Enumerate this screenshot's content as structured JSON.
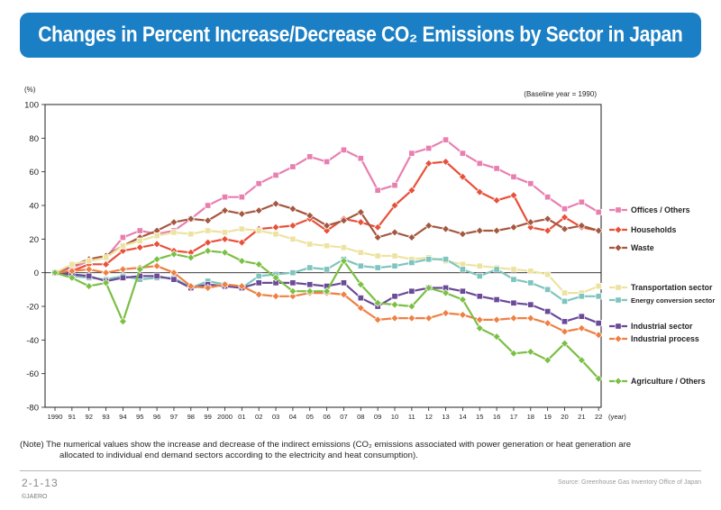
{
  "header": {
    "title": "Changes in Percent Increase/Decrease CO₂ Emissions by Sector in Japan"
  },
  "unit_label": "(%)",
  "baseline_label": "(Baseline year = 1990)",
  "x_unit": "(year)",
  "note": {
    "line1": "(Note) The numerical values show the increase and decrease of the indirect emissions (CO₂ emissions associated with power generation or heat generation are",
    "line2": "allocated to individual end demand sectors according to the electricity and heat consumption)."
  },
  "footer": {
    "code": "2-1-13",
    "source": "Source: Greenhouse Gas Inventory Office of Japan",
    "copyright": "©JAERO"
  },
  "chart_data": {
    "type": "line",
    "title": "Changes in Percent Increase/Decrease CO₂ Emissions by Sector in Japan",
    "ylabel": "(%)",
    "xlabel": "(year)",
    "ylim": [
      -80,
      100
    ],
    "yticks": [
      100,
      80,
      60,
      40,
      20,
      0,
      -20,
      -40,
      -60,
      -80
    ],
    "grid": false,
    "legend_position": "right",
    "categories": [
      "1990",
      "91",
      "92",
      "93",
      "94",
      "95",
      "96",
      "97",
      "98",
      "99",
      "2000",
      "01",
      "02",
      "03",
      "04",
      "05",
      "06",
      "07",
      "08",
      "09",
      "10",
      "11",
      "12",
      "13",
      "14",
      "15",
      "16",
      "17",
      "18",
      "19",
      "20",
      "21",
      "22"
    ],
    "series": [
      {
        "name": "Offices / Others",
        "color": "#e87fb0",
        "marker": "square",
        "values": [
          0,
          3,
          7,
          9,
          21,
          25,
          23,
          25,
          32,
          40,
          45,
          45,
          53,
          58,
          63,
          69,
          66,
          73,
          68,
          49,
          52,
          71,
          74,
          79,
          71,
          65,
          62,
          57,
          53,
          45,
          38,
          42,
          36
        ]
      },
      {
        "name": "Households",
        "color": "#e8503a",
        "marker": "diamond",
        "values": [
          0,
          1,
          5,
          5,
          13,
          15,
          17,
          13,
          12,
          18,
          20,
          18,
          26,
          27,
          28,
          32,
          25,
          32,
          30,
          27,
          40,
          49,
          65,
          66,
          57,
          48,
          43,
          46,
          27,
          25,
          33,
          27,
          25
        ]
      },
      {
        "name": "Waste",
        "color": "#a5573f",
        "marker": "diamond",
        "values": [
          0,
          4,
          8,
          10,
          16,
          21,
          25,
          30,
          32,
          31,
          37,
          35,
          37,
          41,
          38,
          34,
          28,
          31,
          36,
          21,
          24,
          21,
          28,
          26,
          23,
          25,
          25,
          27,
          30,
          32,
          26,
          28,
          25
        ]
      },
      {
        "name": "Transportation sector",
        "color": "#ede3a1",
        "marker": "square",
        "values": [
          0,
          5,
          7,
          9,
          16,
          19,
          22,
          24,
          23,
          25,
          24,
          26,
          25,
          23,
          20,
          17,
          16,
          15,
          12,
          10,
          10,
          8,
          9,
          7,
          5,
          4,
          3,
          2,
          1,
          -1,
          -12,
          -12,
          -8
        ]
      },
      {
        "name": "Energy conversion sector",
        "color": "#7fc5bd",
        "marker": "square",
        "values": [
          0,
          -2,
          -3,
          -4,
          -2,
          -4,
          -3,
          -3,
          -9,
          -5,
          -7,
          -9,
          -2,
          -1,
          0,
          3,
          2,
          8,
          4,
          3,
          4,
          6,
          8,
          8,
          2,
          -2,
          2,
          -4,
          -6,
          -10,
          -17,
          -14,
          -14
        ]
      },
      {
        "name": "Industrial sector",
        "color": "#6b4a97",
        "marker": "square",
        "values": [
          0,
          -1,
          -2,
          -5,
          -3,
          -2,
          -2,
          -4,
          -9,
          -7,
          -8,
          -9,
          -6,
          -6,
          -6,
          -7,
          -8,
          -6,
          -15,
          -20,
          -14,
          -11,
          -9,
          -9,
          -11,
          -14,
          -16,
          -18,
          -19,
          -23,
          -29,
          -26,
          -30
        ]
      },
      {
        "name": "Industrial process",
        "color": "#ef8043",
        "marker": "diamond",
        "values": [
          0,
          1,
          2,
          0,
          2,
          3,
          4,
          0,
          -8,
          -9,
          -7,
          -8,
          -13,
          -14,
          -14,
          -12,
          -12,
          -13,
          -21,
          -28,
          -27,
          -27,
          -27,
          -24,
          -25,
          -28,
          -28,
          -27,
          -27,
          -30,
          -35,
          -33,
          -37
        ]
      },
      {
        "name": "Agriculture / Others",
        "color": "#7bbf44",
        "marker": "diamond",
        "values": [
          0,
          -3,
          -8,
          -6,
          -29,
          2,
          8,
          11,
          9,
          13,
          12,
          7,
          5,
          -3,
          -11,
          -11,
          -11,
          7,
          -7,
          -18,
          -19,
          -20,
          -9,
          -12,
          -16,
          -33,
          -38,
          -48,
          -47,
          -52,
          -42,
          -52,
          -63
        ]
      }
    ]
  }
}
